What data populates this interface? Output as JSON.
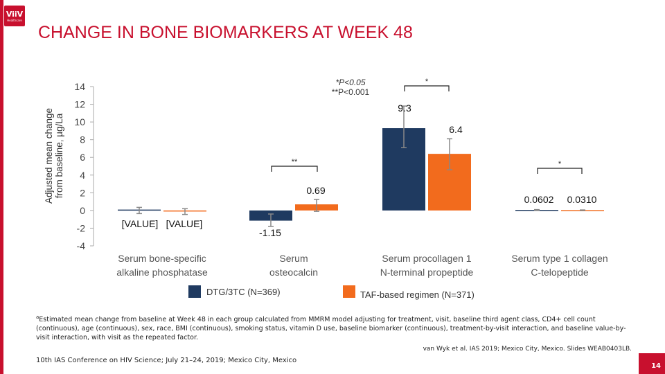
{
  "header": {
    "title": "CHANGE IN BONE BIOMARKERS AT WEEK 48",
    "logo_text": "ViiV",
    "logo_subtext": "Healthcare"
  },
  "chart_data": {
    "type": "bar",
    "ylabel_line1": "Adjusted mean change",
    "ylabel_line2": "from baseline, µg/La",
    "ylim": [
      -4,
      14
    ],
    "yticks": [
      14,
      12,
      10,
      8,
      6,
      4,
      2,
      0,
      -2,
      -4
    ],
    "categories": [
      [
        "Serum bone-specific",
        "alkaline phosphatase"
      ],
      [
        "Serum",
        "osteocalcin"
      ],
      [
        "Serum procollagen 1",
        "N-terminal propeptide"
      ],
      [
        "Serum type 1 collagen",
        "C-telopeptide"
      ]
    ],
    "series": [
      {
        "name": "DTG/3TC (N=369)",
        "color": "#1f3a60",
        "values": [
          0.1,
          -1.15,
          9.3,
          0.0602
        ],
        "error_low": [
          -0.35,
          -1.8,
          7.1,
          0.0
        ],
        "error_high": [
          0.35,
          -0.4,
          11.8,
          0.1
        ],
        "labels": [
          "[VALUE]",
          "-1.15",
          "9.3",
          "0.0602"
        ]
      },
      {
        "name": "TAF-based regimen (N=371)",
        "color": "#f26b1d",
        "values": [
          -0.12,
          0.69,
          6.4,
          0.031
        ],
        "error_low": [
          -0.45,
          -0.1,
          4.6,
          0.0
        ],
        "error_high": [
          0.2,
          1.25,
          8.1,
          0.06
        ],
        "labels": [
          "[VALUE]",
          "0.69",
          "6.4",
          "0.0310"
        ]
      }
    ],
    "significance_note_line1": "*P<0.05",
    "significance_note_line2": "**P<0.001",
    "significance_markers": [
      "**",
      "*",
      "*"
    ]
  },
  "footnote": {
    "marker": "a",
    "text": "Estimated mean change from baseline at Week 48 in each group calculated from MMRM model adjusting for treatment, visit, baseline third agent class, CD4+ cell count (continuous), age (continuous), sex, race, BMI (continuous), smoking status, vitamin D use, baseline biomarker (continuous), treatment-by-visit interaction, and baseline value-by-visit interaction, with visit as the repeated factor."
  },
  "citation": "van Wyk et al. IAS 2019; Mexico City, Mexico. Slides WEAB0403LB.",
  "conference": "10th IAS Conference on HIV Science; July 21–24, 2019; Mexico City, Mexico",
  "page_number": "14"
}
